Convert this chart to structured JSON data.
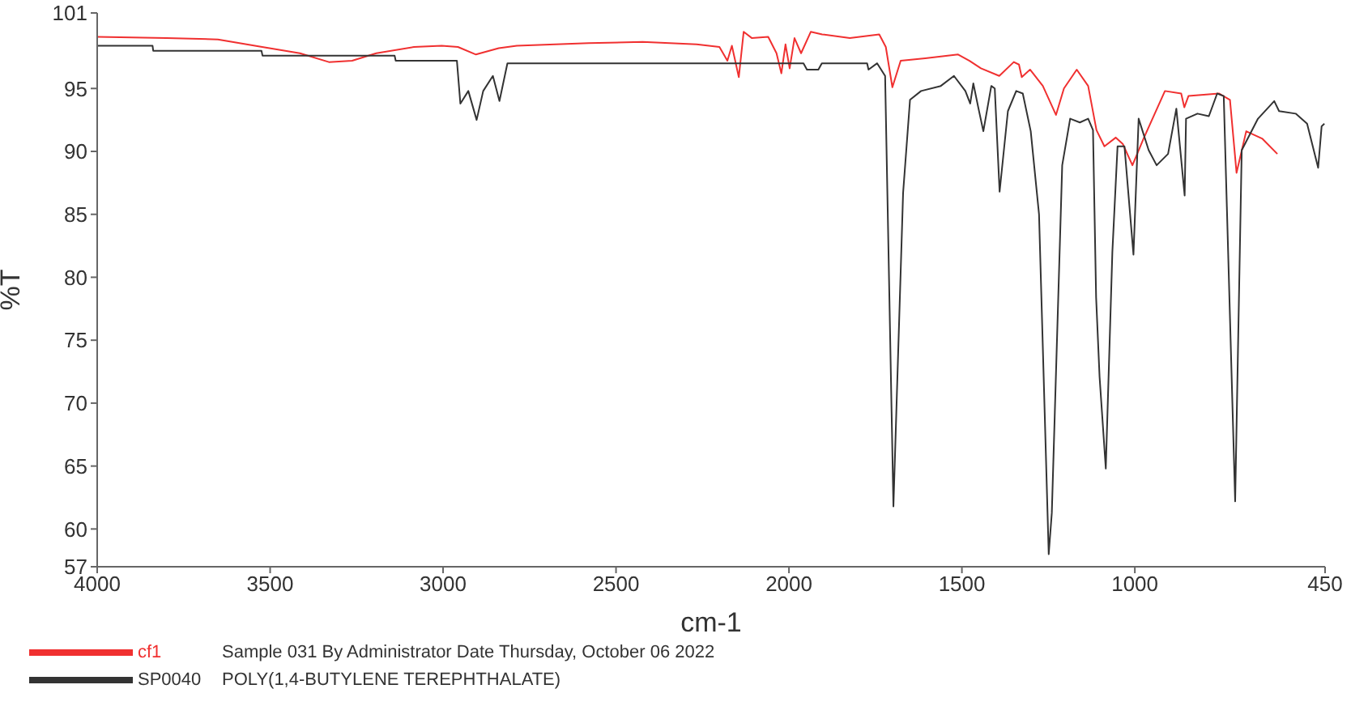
{
  "chart_data": {
    "type": "line",
    "xlabel": "cm-1",
    "ylabel": "%T",
    "xlim": [
      4000,
      450
    ],
    "xticks": [
      4000,
      3500,
      3000,
      2500,
      2000,
      1500,
      1000,
      450
    ],
    "ylim": [
      57,
      101
    ],
    "yticks": [
      57,
      60,
      65,
      70,
      75,
      80,
      85,
      90,
      95,
      101
    ],
    "grid": false,
    "legend": "bottom left",
    "marker": "none",
    "line_style": "solid",
    "annotations": [
      "Sample 031 By Administrator Date Thursday, October 06 2022",
      "POLY(1,4-BUTYLENE TEREPHTHALATE)"
    ],
    "series": [
      {
        "name": "cf1",
        "color": "#f03030",
        "x": [
          4000,
          3800,
          3651,
          3523,
          3414,
          3330,
          3263,
          3193,
          3084,
          3004,
          2957,
          2905,
          2839,
          2787,
          2579,
          2423,
          2267,
          2201,
          2178,
          2165,
          2145,
          2131,
          2107,
          2060,
          2036,
          2022,
          2010,
          1998,
          1984,
          1965,
          1937,
          1904,
          1824,
          1739,
          1720,
          1701,
          1677,
          1606,
          1511,
          1478,
          1445,
          1392,
          1350,
          1335,
          1327,
          1303,
          1266,
          1228,
          1205,
          1168,
          1135,
          1111,
          1088,
          1055,
          1035,
          1007,
          975,
          913,
          866,
          857,
          845,
          757,
          725,
          706,
          678,
          654,
          631,
          588
        ],
        "values": [
          99.1,
          99.0,
          98.9,
          98.3,
          97.8,
          97.1,
          97.2,
          97.8,
          98.3,
          98.4,
          98.3,
          97.7,
          98.2,
          98.4,
          98.6,
          98.7,
          98.5,
          98.3,
          97.2,
          98.4,
          95.9,
          99.5,
          99.0,
          99.1,
          97.8,
          96.2,
          98.5,
          96.6,
          99.0,
          97.8,
          99.5,
          99.3,
          99.0,
          99.3,
          98.3,
          95.1,
          97.2,
          97.4,
          97.7,
          97.2,
          96.6,
          96.0,
          97.1,
          96.9,
          95.9,
          96.5,
          95.2,
          92.9,
          95.0,
          96.5,
          95.2,
          91.7,
          90.4,
          91.1,
          90.6,
          88.9,
          91.0,
          94.8,
          94.6,
          93.5,
          94.4,
          94.6,
          94.1,
          88.3,
          91.6,
          91.3,
          91.0,
          89.8
        ]
      },
      {
        "name": "SP0040",
        "color": "#333333",
        "x": [
          4000,
          3840,
          3838,
          3525,
          3522,
          3140,
          3137,
          2960,
          2950,
          2927,
          2903,
          2884,
          2856,
          2837,
          2814,
          1958,
          1948,
          1915,
          1905,
          1774,
          1770,
          1745,
          1722,
          1698,
          1670,
          1650,
          1618,
          1561,
          1523,
          1490,
          1476,
          1467,
          1452,
          1438,
          1415,
          1405,
          1391,
          1367,
          1343,
          1324,
          1301,
          1277,
          1249,
          1240,
          1210,
          1187,
          1159,
          1135,
          1121,
          1112,
          1102,
          1084,
          1065,
          1050,
          1030,
          1004,
          989,
          960,
          937,
          904,
          880,
          856,
          852,
          819,
          786,
          762,
          743,
          710,
          691,
          644,
          597,
          583,
          535,
          502,
          470,
          460,
          452
        ],
        "values": [
          98.4,
          98.4,
          98.0,
          98.0,
          97.6,
          97.6,
          97.2,
          97.2,
          93.8,
          94.8,
          92.5,
          94.8,
          96.0,
          94.0,
          97.0,
          97.0,
          96.5,
          96.5,
          97.0,
          97.0,
          96.5,
          97.0,
          96.0,
          61.8,
          86.7,
          94.1,
          94.8,
          95.2,
          96.0,
          94.8,
          93.8,
          95.4,
          93.4,
          91.6,
          95.2,
          95.0,
          86.8,
          93.2,
          94.8,
          94.6,
          91.6,
          85.0,
          58.0,
          61.3,
          88.9,
          92.6,
          92.3,
          92.6,
          91.7,
          78.4,
          72.1,
          64.8,
          82.0,
          90.4,
          90.4,
          81.8,
          92.6,
          90.1,
          88.9,
          89.8,
          93.4,
          86.5,
          92.6,
          93.0,
          92.8,
          94.6,
          94.4,
          62.2,
          90.1,
          92.6,
          94.0,
          93.2,
          93.0,
          92.2,
          88.7,
          92.0,
          92.2
        ]
      }
    ]
  }
}
